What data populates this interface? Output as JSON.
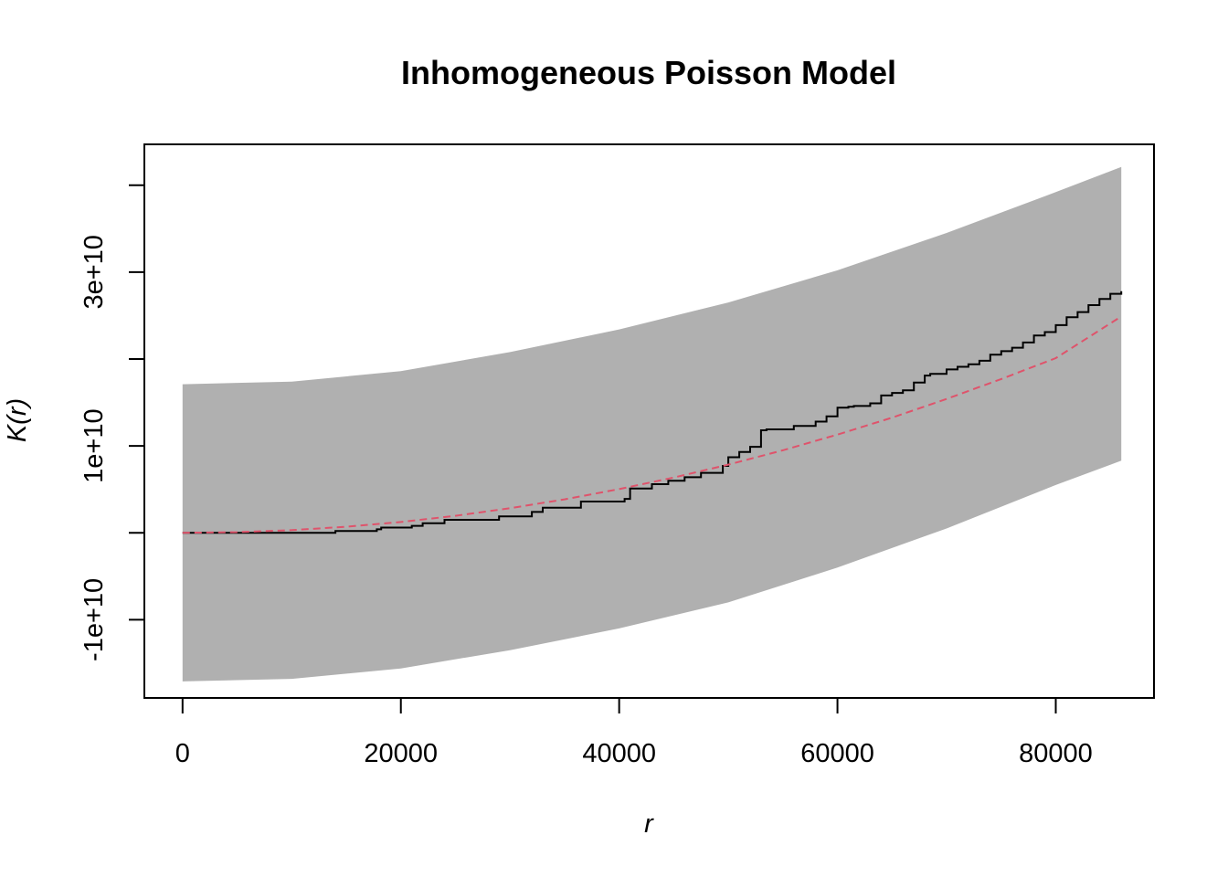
{
  "chart_data": {
    "type": "line",
    "title": "Inhomogeneous Poisson Model",
    "xlabel": "r",
    "ylabel": "K(r)",
    "xlim": [
      -3500,
      89000
    ],
    "ylim": [
      -19000000000,
      44700000000
    ],
    "x_ticks": [
      {
        "value": 0,
        "label": "0"
      },
      {
        "value": 20000,
        "label": "20000"
      },
      {
        "value": 40000,
        "label": "40000"
      },
      {
        "value": 60000,
        "label": "60000"
      },
      {
        "value": 80000,
        "label": "80000"
      }
    ],
    "y_ticks": [
      {
        "value": -10000000000,
        "label": "-1e+10"
      },
      {
        "value": 0,
        "label": ""
      },
      {
        "value": 10000000000,
        "label": "1e+10"
      },
      {
        "value": 20000000000,
        "label": ""
      },
      {
        "value": 30000000000,
        "label": "3e+10"
      },
      {
        "value": 40000000000,
        "label": ""
      }
    ],
    "grid": false,
    "envelope": {
      "color": "#b0b0b0",
      "x": [
        0,
        10000,
        20000,
        30000,
        40000,
        50000,
        60000,
        70000,
        80000,
        86000
      ],
      "upper": [
        17100000000,
        17400000000,
        18600000000,
        20800000000,
        23400000000,
        26500000000,
        30200000000,
        34500000000,
        39200000000,
        42100000000
      ],
      "lower": [
        -17100000000,
        -16800000000,
        -15600000000,
        -13500000000,
        -11000000000,
        -8000000000,
        -4000000000,
        500000000,
        5500000000,
        8300000000
      ]
    },
    "series": [
      {
        "color": "#000000",
        "dash": "solid",
        "step": true,
        "x": [
          0,
          14000,
          17800,
          18200,
          21000,
          22000,
          24000,
          26000,
          29000,
          32000,
          33000,
          36500,
          40500,
          41000,
          43000,
          44500,
          46000,
          47500,
          49500,
          50000,
          51000,
          52000,
          53000,
          53500,
          55000,
          56000,
          58000,
          59000,
          60000,
          61000,
          61500,
          63000,
          64000,
          65000,
          66000,
          67000,
          68000,
          68500,
          70000,
          71000,
          72000,
          73000,
          74000,
          75000,
          76000,
          77000,
          78000,
          79000,
          80000,
          81000,
          82000,
          83000,
          84000,
          85000,
          86000
        ],
        "y": [
          0,
          200000000,
          400000000,
          600000000,
          800000000,
          1100000000,
          1500000000,
          1500000000,
          1900000000,
          2400000000,
          2900000000,
          3600000000,
          3900000000,
          5100000000,
          5600000000,
          6000000000,
          6400000000,
          6900000000,
          7700000000,
          8700000000,
          9300000000,
          9900000000,
          11800000000,
          11900000000,
          11900000000,
          12300000000,
          12800000000,
          13400000000,
          14400000000,
          14500000000,
          14600000000,
          14900000000,
          15800000000,
          16100000000,
          16400000000,
          17300000000,
          18100000000,
          18300000000,
          18800000000,
          19100000000,
          19400000000,
          19800000000,
          20500000000,
          20900000000,
          21300000000,
          21900000000,
          22700000000,
          23100000000,
          23900000000,
          24800000000,
          25400000000,
          26200000000,
          26900000000,
          27500000000,
          27800000000
        ]
      },
      {
        "color": "#df536b",
        "dash": "dashed",
        "step": false,
        "x": [
          0,
          5000,
          10000,
          15000,
          20000,
          25000,
          30000,
          35000,
          40000,
          45000,
          50000,
          55000,
          60000,
          65000,
          70000,
          75000,
          80000,
          86000
        ],
        "y": [
          0,
          80000000,
          310000000,
          700000000,
          1250000000,
          1960000000,
          2830000000,
          3850000000,
          5030000000,
          6360000000,
          7850000000,
          9500000000,
          11300000000,
          13250000000,
          15400000000,
          17700000000,
          20100000000,
          24900000000
        ]
      }
    ]
  }
}
